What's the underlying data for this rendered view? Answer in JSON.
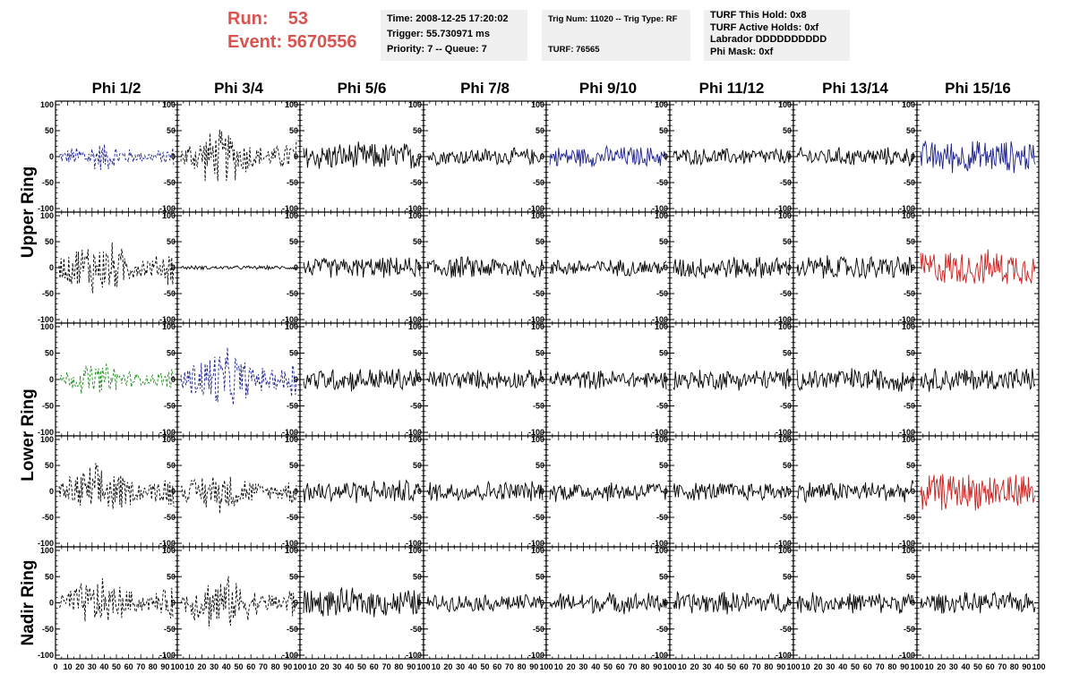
{
  "header": {
    "run_label": "Run:",
    "run_value": "53",
    "event_label": "Event:",
    "event_value": "5670556",
    "box_time": {
      "lines": [
        "Time: 2008-12-25 17:20:02",
        "Trigger: 55.730971 ms",
        "Priority: 7 -- Queue: 7"
      ]
    },
    "box_trig": {
      "lines": [
        "Trig Num: 11020 -- Trig Type: RF",
        "",
        "TURF: 76565"
      ]
    },
    "box_turf": {
      "lines": [
        "TURF This Hold: 0x8",
        "TURF Active Holds: 0xf",
        "Labrador DDDDDDDDDD",
        "Phi Mask: 0xf"
      ]
    }
  },
  "chart_data": {
    "type": "line",
    "columns": [
      "Phi 1/2",
      "Phi 3/4",
      "Phi 5/6",
      "Phi 7/8",
      "Phi 9/10",
      "Phi 11/12",
      "Phi 13/14",
      "Phi 15/16"
    ],
    "ring_labels": [
      "Upper Ring",
      "Lower Ring",
      "Nadir Ring"
    ],
    "ylim": [
      -100,
      100
    ],
    "xlim": [
      0,
      100
    ],
    "y_ticks": [
      "100",
      "50",
      "0",
      "-50",
      "-100"
    ],
    "x_ticks": [
      "0",
      "10",
      "20",
      "30",
      "40",
      "50",
      "60",
      "70",
      "80",
      "90",
      "100"
    ],
    "colors": {
      "black": "#000000",
      "blue": "#1a1f8c",
      "red": "#c8201e",
      "green": "#1a8a1a"
    },
    "waveforms": [
      [
        {
          "color": "blue",
          "dashed": true,
          "amp": 32
        },
        {
          "color": "black",
          "dashed": true,
          "amp": 60
        },
        {
          "color": "black",
          "dashed": false,
          "amp": 30
        },
        {
          "color": "black",
          "dashed": false,
          "amp": 18
        },
        {
          "color": "blue",
          "dashed": false,
          "amp": 22
        },
        {
          "color": "black",
          "dashed": false,
          "amp": 18
        },
        {
          "color": "black",
          "dashed": false,
          "amp": 20
        },
        {
          "color": "blue",
          "dashed": false,
          "amp": 35
        }
      ],
      [
        {
          "color": "black",
          "dashed": true,
          "amp": 62
        },
        {
          "color": "black",
          "dashed": false,
          "amp": 4
        },
        {
          "color": "black",
          "dashed": false,
          "amp": 22
        },
        {
          "color": "black",
          "dashed": false,
          "amp": 24
        },
        {
          "color": "black",
          "dashed": false,
          "amp": 18
        },
        {
          "color": "black",
          "dashed": false,
          "amp": 24
        },
        {
          "color": "black",
          "dashed": false,
          "amp": 26
        },
        {
          "color": "red",
          "dashed": false,
          "amp": 38
        }
      ],
      [
        {
          "color": "green",
          "dashed": true,
          "amp": 35
        },
        {
          "color": "blue",
          "dashed": true,
          "amp": 65
        },
        {
          "color": "black",
          "dashed": false,
          "amp": 25
        },
        {
          "color": "black",
          "dashed": false,
          "amp": 20
        },
        {
          "color": "black",
          "dashed": false,
          "amp": 20
        },
        {
          "color": "black",
          "dashed": false,
          "amp": 22
        },
        {
          "color": "black",
          "dashed": false,
          "amp": 25
        },
        {
          "color": "black",
          "dashed": false,
          "amp": 25
        }
      ],
      [
        {
          "color": "black",
          "dashed": true,
          "amp": 58
        },
        {
          "color": "black",
          "dashed": true,
          "amp": 45
        },
        {
          "color": "black",
          "dashed": false,
          "amp": 25
        },
        {
          "color": "black",
          "dashed": false,
          "amp": 22
        },
        {
          "color": "black",
          "dashed": false,
          "amp": 22
        },
        {
          "color": "black",
          "dashed": false,
          "amp": 20
        },
        {
          "color": "black",
          "dashed": false,
          "amp": 22
        },
        {
          "color": "red",
          "dashed": false,
          "amp": 40
        }
      ],
      [
        {
          "color": "black",
          "dashed": true,
          "amp": 52
        },
        {
          "color": "black",
          "dashed": true,
          "amp": 58
        },
        {
          "color": "black",
          "dashed": false,
          "amp": 30
        },
        {
          "color": "black",
          "dashed": false,
          "amp": 18
        },
        {
          "color": "black",
          "dashed": false,
          "amp": 22
        },
        {
          "color": "black",
          "dashed": false,
          "amp": 24
        },
        {
          "color": "black",
          "dashed": false,
          "amp": 22
        },
        {
          "color": "black",
          "dashed": false,
          "amp": 22
        }
      ]
    ]
  }
}
